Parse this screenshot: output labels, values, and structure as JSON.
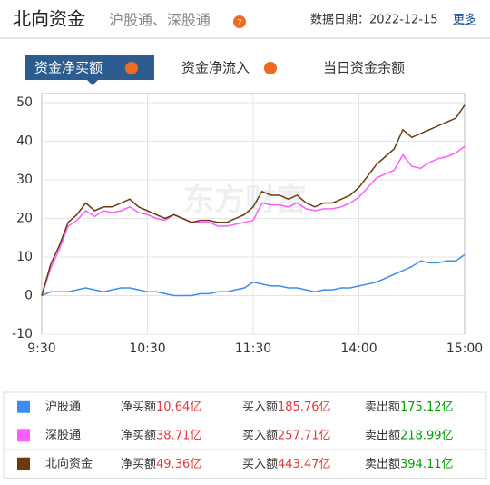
{
  "header": {
    "title": "北向资金",
    "subtitle": "沪股通、深股通",
    "date": "数据日期：2022-12-15",
    "more": "更多"
  },
  "tabs": [
    "资金净买额",
    "资金净流入",
    "当日资金余额"
  ],
  "watermark": "东方财富",
  "chart_data": {
    "type": "line",
    "x": [
      0,
      5,
      10,
      15,
      20,
      25,
      30,
      35,
      40,
      45,
      50,
      55,
      60,
      65,
      70,
      75,
      80,
      85,
      90,
      95,
      100,
      105,
      110,
      115,
      120,
      125,
      130,
      135,
      140,
      145,
      150,
      155,
      160,
      165,
      170,
      175,
      180,
      185,
      190,
      195,
      200,
      205,
      210,
      215,
      220,
      225,
      230,
      235,
      240
    ],
    "xlim": [
      0,
      240
    ],
    "xticks": [
      {
        "value": 0,
        "label": "9:30"
      },
      {
        "value": 60,
        "label": "10:30"
      },
      {
        "value": 120,
        "label": "11:30"
      },
      {
        "value": 180,
        "label": "14:00"
      },
      {
        "value": 240,
        "label": "15:00"
      }
    ],
    "ylim": [
      -10,
      50
    ],
    "yticks": [
      -10,
      0,
      10,
      20,
      30,
      40,
      50
    ],
    "grid": true,
    "series": [
      {
        "name": "沪股通",
        "color": "#3d8cf0",
        "values": [
          0,
          1,
          1,
          1,
          1.5,
          2,
          1.5,
          1,
          1.5,
          2,
          2,
          1.5,
          1,
          1,
          0.5,
          0,
          0,
          0,
          0.5,
          0.5,
          1,
          1,
          1.5,
          2,
          3.5,
          3,
          2.5,
          2.5,
          2,
          2,
          1.5,
          1,
          1.5,
          1.5,
          2,
          2,
          2.5,
          3,
          3.5,
          4.5,
          5.5,
          6.5,
          7.5,
          9,
          8.5,
          8.5,
          9,
          9,
          10.64
        ]
      },
      {
        "name": "深股通",
        "color": "#ff5cff",
        "values": [
          0,
          7,
          12,
          18,
          19.5,
          22,
          20.5,
          22,
          21.5,
          22,
          23,
          21.5,
          21,
          20,
          19.5,
          21,
          20,
          19,
          19,
          19,
          18,
          18,
          18.5,
          19,
          19.5,
          24,
          23.5,
          23.5,
          23,
          24,
          22.5,
          22,
          22.5,
          22.5,
          23,
          24,
          25.5,
          28,
          30.5,
          31.5,
          32.5,
          36.5,
          33.5,
          33,
          34.5,
          35.5,
          36,
          37,
          38.71
        ]
      },
      {
        "name": "北向资金",
        "color": "#6b3a0f",
        "values": [
          0,
          8,
          13,
          19,
          21,
          24,
          22,
          23,
          23,
          24,
          25,
          23,
          22,
          21,
          20,
          21,
          20,
          19,
          19.5,
          19.5,
          19,
          19,
          20,
          21,
          23,
          27,
          26,
          26,
          25,
          26,
          24,
          23,
          24,
          24,
          25,
          26,
          28,
          31,
          34,
          36,
          38,
          43,
          41,
          42,
          43,
          44,
          45,
          46,
          49.36
        ]
      }
    ]
  },
  "table": {
    "rows": [
      {
        "net_label": "净买额",
        "net": "10.64亿",
        "buy_label": "买入额",
        "buy": "185.76亿",
        "sell_label": "卖出额",
        "sell": "175.12亿"
      },
      {
        "net_label": "净买额",
        "net": "38.71亿",
        "buy_label": "买入额",
        "buy": "257.71亿",
        "sell_label": "卖出额",
        "sell": "218.99亿"
      },
      {
        "net_label": "净买额",
        "net": "49.36亿",
        "buy_label": "买入额",
        "buy": "443.47亿",
        "sell_label": "卖出额",
        "sell": "394.11亿"
      }
    ]
  }
}
